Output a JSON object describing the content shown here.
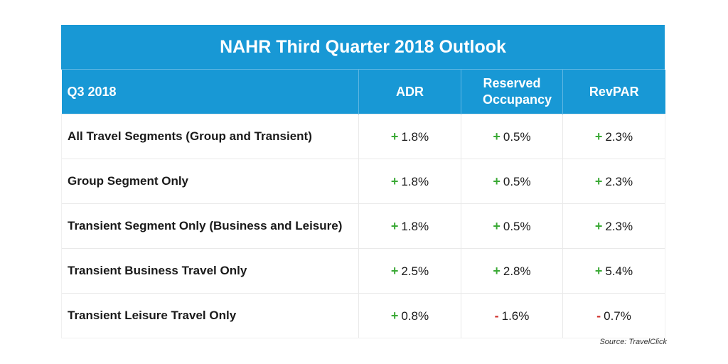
{
  "chart_data": {
    "type": "table",
    "title": "NAHR Third Quarter 2018 Outlook",
    "columns": [
      "Q3 2018",
      "ADR",
      "Reserved Occupancy",
      "RevPAR"
    ],
    "rows": [
      {
        "segment": "All Travel Segments (Group and Transient)",
        "cells": [
          {
            "sign": "+",
            "value": "1.8%"
          },
          {
            "sign": "+",
            "value": "0.5%"
          },
          {
            "sign": "+",
            "value": "2.3%"
          }
        ]
      },
      {
        "segment": "Group Segment Only",
        "cells": [
          {
            "sign": "+",
            "value": "1.8%"
          },
          {
            "sign": "+",
            "value": "0.5%"
          },
          {
            "sign": "+",
            "value": "2.3%"
          }
        ]
      },
      {
        "segment": "Transient Segment Only (Business and Leisure)",
        "cells": [
          {
            "sign": "+",
            "value": "1.8%"
          },
          {
            "sign": "+",
            "value": "0.5%"
          },
          {
            "sign": "+",
            "value": "2.3%"
          }
        ]
      },
      {
        "segment": "Transient Business Travel Only",
        "cells": [
          {
            "sign": "+",
            "value": "2.5%"
          },
          {
            "sign": "+",
            "value": "2.8%"
          },
          {
            "sign": "+",
            "value": "5.4%"
          }
        ]
      },
      {
        "segment": "Transient Leisure Travel Only",
        "cells": [
          {
            "sign": "+",
            "value": "0.8%"
          },
          {
            "sign": "-",
            "value": "1.6%"
          },
          {
            "sign": "-",
            "value": "0.7%"
          }
        ]
      }
    ],
    "source": "Source: TravelClick"
  },
  "colors": {
    "header_bg": "#1898d5",
    "positive": "#3aa935",
    "negative": "#d0312d"
  }
}
